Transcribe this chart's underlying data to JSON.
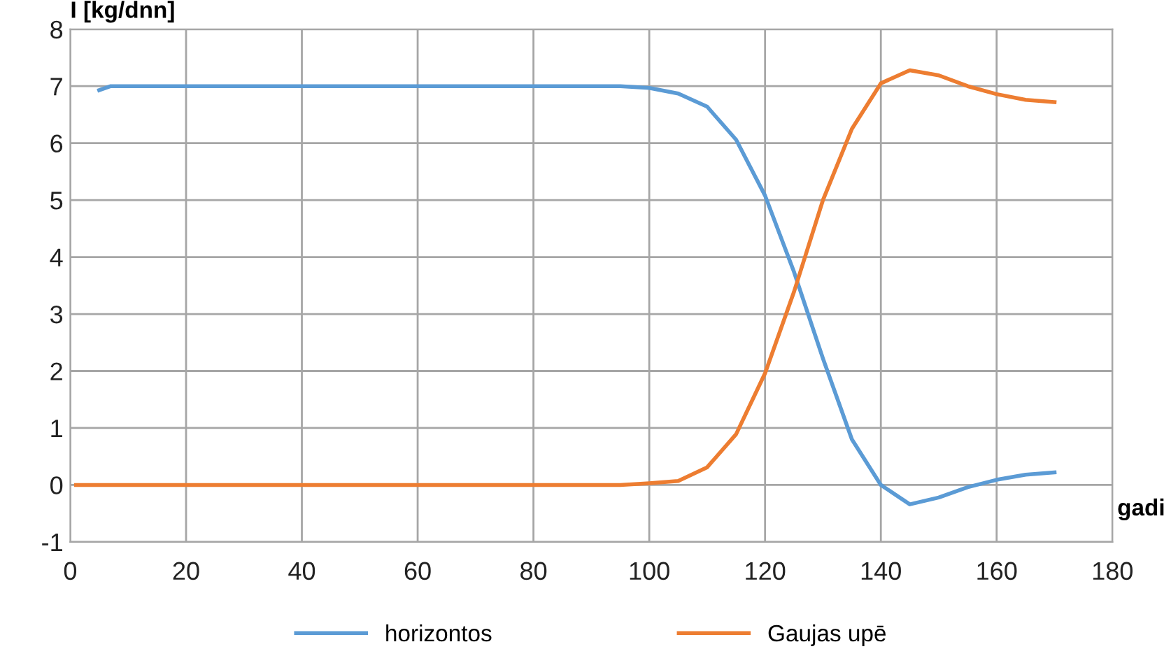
{
  "chart_data": {
    "type": "line",
    "xlabel": "gadi",
    "ylabel": "I [kg/dnn]",
    "xlim": [
      0,
      180
    ],
    "xticks": [
      0,
      20,
      40,
      60,
      80,
      100,
      120,
      140,
      160,
      180
    ],
    "ylim": [
      -1,
      8
    ],
    "yticks": [
      -1,
      0,
      1,
      2,
      3,
      4,
      5,
      6,
      7,
      8
    ],
    "grid": true,
    "legend": "bottom",
    "series": [
      {
        "name": "horizontos",
        "color": "#5b9bd5",
        "x": [
          5,
          7,
          20,
          40,
          60,
          80,
          95,
          100,
          105,
          110,
          115,
          120,
          125,
          130,
          135,
          140,
          145,
          150,
          155,
          160,
          165,
          170
        ],
        "values": [
          6.93,
          7.0,
          7.0,
          7.0,
          7.0,
          7.0,
          7.0,
          6.97,
          6.87,
          6.64,
          6.06,
          5.08,
          3.74,
          2.22,
          0.8,
          0.0,
          -0.34,
          -0.22,
          -0.04,
          0.09,
          0.18,
          0.22
        ]
      },
      {
        "name": "Gaujas upē",
        "color": "#ed7d31",
        "x": [
          1,
          2,
          20,
          40,
          60,
          80,
          95,
          100,
          105,
          110,
          115,
          120,
          125,
          130,
          135,
          140,
          145,
          150,
          155,
          160,
          165,
          170
        ],
        "values": [
          0.0,
          0.0,
          0.0,
          0.0,
          0.0,
          0.0,
          0.0,
          0.03,
          0.07,
          0.31,
          0.89,
          1.96,
          3.39,
          5.0,
          6.25,
          7.05,
          7.28,
          7.19,
          7.0,
          6.86,
          6.76,
          6.72
        ]
      }
    ]
  }
}
